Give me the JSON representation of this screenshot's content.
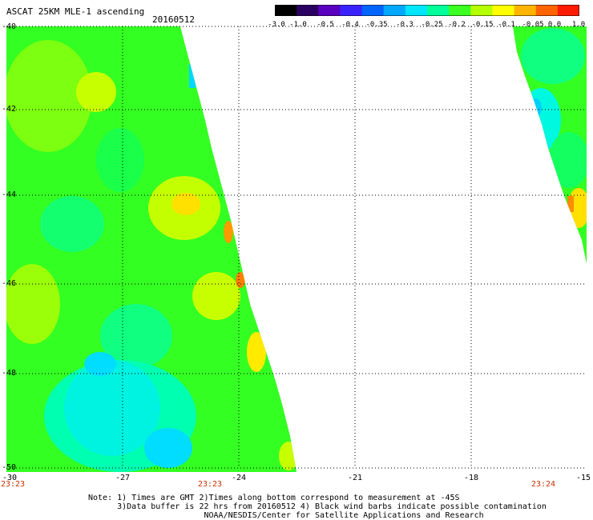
{
  "header": {
    "title": "ASCAT 25KM MLE-1 ascending",
    "date": "20160512"
  },
  "colorbar": {
    "ticks": [
      "-3.0",
      "-1.0",
      "-0.5",
      "-0.4",
      "-0.35",
      "-0.3",
      "-0.25",
      "-0.2",
      "-0.15",
      "-0.1",
      "-0.05",
      "0.0",
      "1.0"
    ],
    "colors": [
      "#000000",
      "#2a0060",
      "#5a00c0",
      "#3a22ff",
      "#0064ff",
      "#00a8ff",
      "#00e6ff",
      "#00ff9a",
      "#3aff20",
      "#b4ff00",
      "#ffff00",
      "#ffb400",
      "#ff6400",
      "#ff1a00"
    ]
  },
  "axes": {
    "y_labels": [
      "-40",
      "-42",
      "-44",
      "-46",
      "-48",
      "-50"
    ],
    "x_labels": [
      "-30",
      "-27",
      "-24",
      "-21",
      "-18",
      "-15"
    ],
    "times": [
      "23:23",
      "23:23",
      "23:24"
    ]
  },
  "notes": {
    "line1": "Note: 1) Times are GMT 2)Times along bottom correspond to measurement at -45S",
    "line2": "      3)Data buffer is 22 hrs from 20160512 4) Black wind barbs indicate possible contamination",
    "line3": "                        NOAA/NESDIS/Center for Satellite Applications and Research"
  }
}
